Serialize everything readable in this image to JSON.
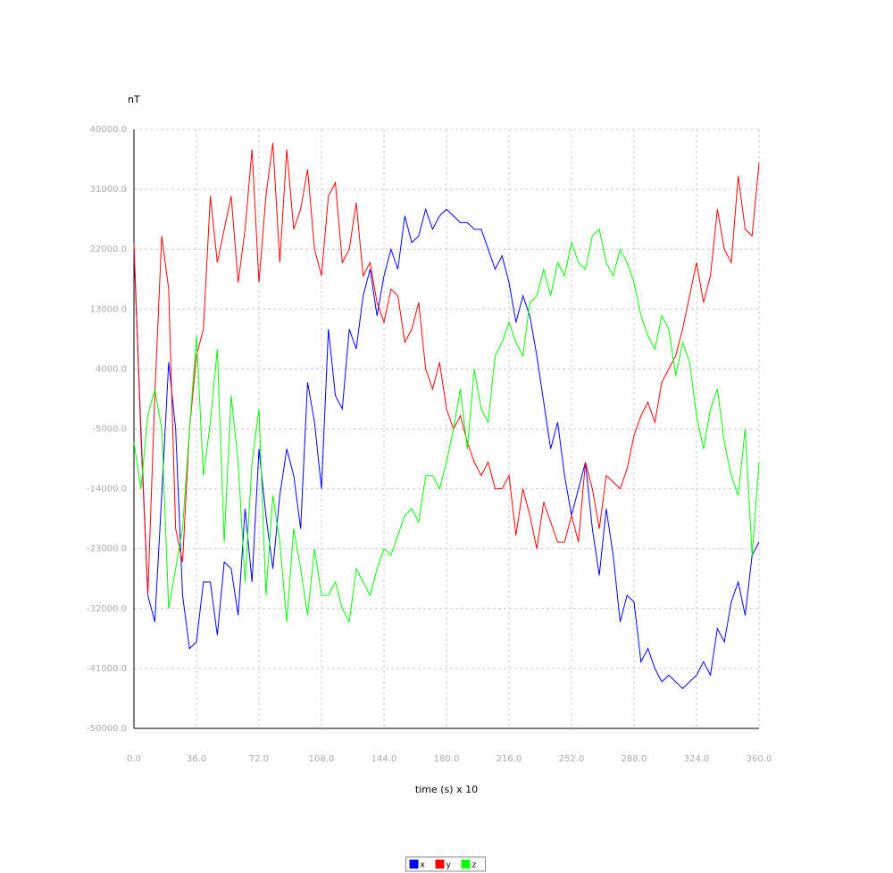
{
  "chart_data": {
    "type": "line",
    "y_label": "nT",
    "x_label": "time (s) x 10",
    "x": [
      0,
      4,
      8,
      12,
      16,
      20,
      24,
      28,
      32,
      36,
      40,
      44,
      48,
      52,
      56,
      60,
      64,
      68,
      72,
      76,
      80,
      84,
      88,
      92,
      96,
      100,
      104,
      108,
      112,
      116,
      120,
      124,
      128,
      132,
      136,
      140,
      144,
      148,
      152,
      156,
      160,
      164,
      168,
      172,
      176,
      180,
      184,
      188,
      192,
      196,
      200,
      204,
      208,
      212,
      216,
      220,
      224,
      228,
      232,
      236,
      240,
      244,
      248,
      252,
      256,
      260,
      264,
      268,
      272,
      276,
      280,
      284,
      288,
      292,
      296,
      300,
      304,
      308,
      312,
      316,
      320,
      324,
      328,
      332,
      336,
      340,
      344,
      348,
      352,
      356,
      360
    ],
    "series": [
      {
        "name": "x",
        "color": "#0000ff",
        "values": [
          22000,
          -5000,
          -30000,
          -34000,
          -15000,
          5000,
          -5000,
          -30000,
          -38000,
          -37000,
          -28000,
          -28000,
          -36000,
          -25000,
          -26000,
          -33000,
          -17000,
          -28000,
          -8000,
          -18000,
          -26000,
          -15000,
          -8000,
          -12000,
          -20000,
          2000,
          -4000,
          -14000,
          10000,
          0,
          -2000,
          10000,
          7000,
          15000,
          19000,
          12000,
          18000,
          22000,
          19000,
          27000,
          23000,
          24000,
          28000,
          25000,
          27000,
          28000,
          27000,
          26000,
          26000,
          25000,
          25000,
          22000,
          19000,
          21000,
          17000,
          11000,
          15000,
          12000,
          6000,
          -1000,
          -8000,
          -4000,
          -12000,
          -18000,
          -14000,
          -10000,
          -20000,
          -27000,
          -17000,
          -24000,
          -34000,
          -30000,
          -31000,
          -40000,
          -38000,
          -41000,
          -43000,
          -42000,
          -43000,
          -44000,
          -43000,
          -42000,
          -40000,
          -42000,
          -35000,
          -37000,
          -31000,
          -28000,
          -33000,
          -24000,
          -22000
        ]
      },
      {
        "name": "y",
        "color": "#ff0000",
        "values": [
          23000,
          -6000,
          -30000,
          0,
          24000,
          16000,
          -20000,
          -25000,
          -5000,
          6000,
          10000,
          30000,
          20000,
          25000,
          30000,
          17000,
          25000,
          37000,
          17000,
          30000,
          38000,
          20000,
          37000,
          25000,
          28000,
          34000,
          22000,
          18000,
          30000,
          32000,
          20000,
          22000,
          29000,
          18000,
          20000,
          14000,
          11000,
          16000,
          15000,
          8000,
          10000,
          14000,
          4000,
          1000,
          5000,
          -2000,
          -5000,
          -3000,
          -7000,
          -10000,
          -12000,
          -10000,
          -14000,
          -14000,
          -12000,
          -21000,
          -14000,
          -18000,
          -23000,
          -16000,
          -19000,
          -22000,
          -22000,
          -18000,
          -22000,
          -10000,
          -14000,
          -20000,
          -12000,
          -13000,
          -14000,
          -11000,
          -6000,
          -3000,
          -1000,
          -4000,
          2000,
          4000,
          6000,
          10000,
          15000,
          20000,
          14000,
          18000,
          28000,
          22000,
          20000,
          33000,
          25000,
          24000,
          35000
        ]
      },
      {
        "name": "z",
        "color": "#00ff00",
        "values": [
          -7000,
          -14000,
          -3000,
          1000,
          -5000,
          -32000,
          -26000,
          -20000,
          -5000,
          9000,
          -12000,
          -4000,
          7000,
          -22000,
          0,
          -10000,
          -28000,
          -10000,
          -2000,
          -30000,
          -15000,
          -22000,
          -34000,
          -20000,
          -26000,
          -33000,
          -23000,
          -30000,
          -30000,
          -28000,
          -32000,
          -34000,
          -26000,
          -28000,
          -30000,
          -26000,
          -23000,
          -24000,
          -21000,
          -18000,
          -17000,
          -19000,
          -12000,
          -12000,
          -14000,
          -10000,
          -5000,
          1000,
          -8000,
          4000,
          -2000,
          -4000,
          6000,
          8000,
          11000,
          8000,
          6000,
          14000,
          15000,
          19000,
          15000,
          20000,
          18000,
          23000,
          20000,
          19000,
          24000,
          25000,
          20000,
          18000,
          22000,
          20000,
          17000,
          12000,
          9000,
          7000,
          12000,
          10000,
          3000,
          8000,
          5000,
          -3000,
          -8000,
          -2000,
          1000,
          -7000,
          -12000,
          -15000,
          -5000,
          -24000,
          -10000
        ]
      }
    ],
    "xlim": [
      0,
      360
    ],
    "xticks": [
      {
        "value": 0,
        "label": "0.0"
      },
      {
        "value": 36,
        "label": "36.0"
      },
      {
        "value": 72,
        "label": "72.0"
      },
      {
        "value": 108,
        "label": "108.0"
      },
      {
        "value": 144,
        "label": "144.0"
      },
      {
        "value": 180,
        "label": "180.0"
      },
      {
        "value": 216,
        "label": "216.0"
      },
      {
        "value": 252,
        "label": "252.0"
      },
      {
        "value": 288,
        "label": "288.0"
      },
      {
        "value": 324,
        "label": "324.0"
      },
      {
        "value": 360,
        "label": "360.0"
      }
    ],
    "ylim": [
      -50000,
      40000
    ],
    "yticks": [
      {
        "value": -50000,
        "label": "-50000.0"
      },
      {
        "value": -41000,
        "label": "-41000.0"
      },
      {
        "value": -32000,
        "label": "-32000.0"
      },
      {
        "value": -23000,
        "label": "-23000.0"
      },
      {
        "value": -14000,
        "label": "-14000.0"
      },
      {
        "value": -5000,
        "label": "-5000.0"
      },
      {
        "value": 4000,
        "label": "4000.0"
      },
      {
        "value": 13000,
        "label": "13000.0"
      },
      {
        "value": 22000,
        "label": "22000.0"
      },
      {
        "value": 31000,
        "label": "31000.0"
      },
      {
        "value": 40000,
        "label": "40000.0"
      }
    ],
    "grid": true,
    "legend": "bottom"
  }
}
